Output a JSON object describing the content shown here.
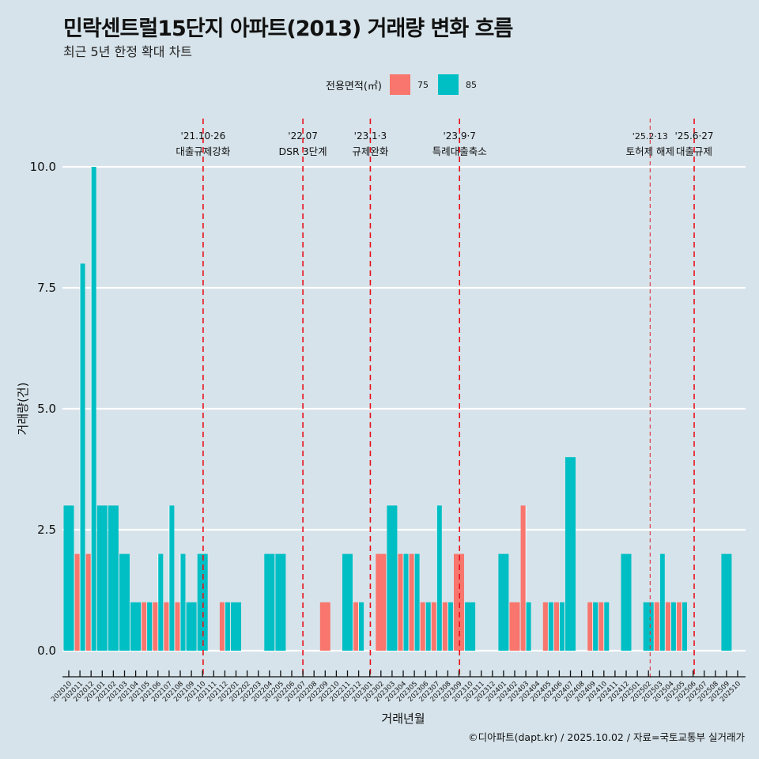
{
  "header": {
    "title": "민락센트럴15단지 아파트(2013) 거래량 변화 흐름",
    "subtitle": "최근 5년 한정 확대 차트"
  },
  "legend": {
    "title": "전용면적(㎡)",
    "items": [
      {
        "label": "75",
        "color": "#F8766D"
      },
      {
        "label": "85",
        "color": "#00BFC4"
      }
    ]
  },
  "caption": "©디아파트(dapt.kr) / 2025.10.02 / 자료=국토교통부 실거래가",
  "chart_data": {
    "type": "bar",
    "title": "민락센트럴15단지 아파트(2013) 거래량 변화 흐름",
    "subtitle": "최근 5년 한정 확대 차트",
    "xlabel": "거래년월",
    "ylabel": "거래량(건)",
    "ylim": [
      -0.45,
      10.7
    ],
    "yticks": [
      0.0,
      2.5,
      5.0,
      7.5,
      10.0
    ],
    "ytick_labels": [
      "0.0",
      "2.5",
      "5.0",
      "7.5",
      "10.0"
    ],
    "grid": "horizontal major",
    "legend_position": "top",
    "categories": [
      "202010",
      "202011",
      "202012",
      "202101",
      "202102",
      "202103",
      "202104",
      "202105",
      "202106",
      "202107",
      "202108",
      "202109",
      "202110",
      "202111",
      "202112",
      "202201",
      "202202",
      "202203",
      "202204",
      "202205",
      "202206",
      "202207",
      "202208",
      "202209",
      "202210",
      "202211",
      "202212",
      "202301",
      "202302",
      "202303",
      "202304",
      "202305",
      "202306",
      "202307",
      "202308",
      "202309",
      "202310",
      "202311",
      "202312",
      "202401",
      "202402",
      "202403",
      "202404",
      "202405",
      "202406",
      "202407",
      "202408",
      "202409",
      "202410",
      "202411",
      "202412",
      "202501",
      "202502",
      "202503",
      "202504",
      "202505",
      "202506",
      "202507",
      "202508",
      "202509",
      "202510"
    ],
    "series": [
      {
        "name": "75",
        "color": "#F8766D",
        "values": [
          0,
          2,
          2,
          0,
          0,
          0,
          0,
          1,
          1,
          1,
          1,
          0,
          0,
          0,
          1,
          0,
          0,
          0,
          0,
          0,
          0,
          0,
          0,
          1,
          0,
          0,
          1,
          0,
          2,
          0,
          2,
          2,
          1,
          1,
          1,
          2,
          0,
          0,
          0,
          0,
          1,
          3,
          0,
          1,
          1,
          0,
          0,
          1,
          1,
          0,
          0,
          0,
          0,
          1,
          1,
          1,
          0,
          0,
          0,
          0,
          0
        ]
      },
      {
        "name": "85",
        "color": "#00BFC4",
        "values": [
          3,
          8,
          10,
          3,
          3,
          2,
          1,
          1,
          2,
          3,
          2,
          1,
          2,
          0,
          1,
          1,
          0,
          0,
          2,
          2,
          0,
          0,
          0,
          0,
          0,
          2,
          1,
          0,
          0,
          3,
          2,
          2,
          1,
          3,
          1,
          0,
          1,
          0,
          0,
          2,
          0,
          1,
          0,
          1,
          1,
          4,
          0,
          1,
          1,
          0,
          2,
          0,
          1,
          2,
          1,
          1,
          0,
          0,
          0,
          2,
          0
        ]
      }
    ],
    "annotations": [
      {
        "date": "'21.10·26",
        "label": "대출규제강화",
        "x": 12.05,
        "style": "dashed"
      },
      {
        "date": "'22.07",
        "label": "DSR 3단계",
        "x": 21,
        "style": "dashed"
      },
      {
        "date": "'23.1·3",
        "label": "규제완화",
        "x": 27.05,
        "style": "dashed"
      },
      {
        "date": "'23.9·7",
        "label": "특례대출축소",
        "x": 35.05,
        "style": "dashed"
      },
      {
        "date": "'25.2·13",
        "label": "토허제 해제",
        "x": 52.15,
        "style": "dashed-thin"
      },
      {
        "date": "'25.6·27",
        "label": "대출규제",
        "x": 56.1,
        "style": "dashed"
      }
    ]
  }
}
